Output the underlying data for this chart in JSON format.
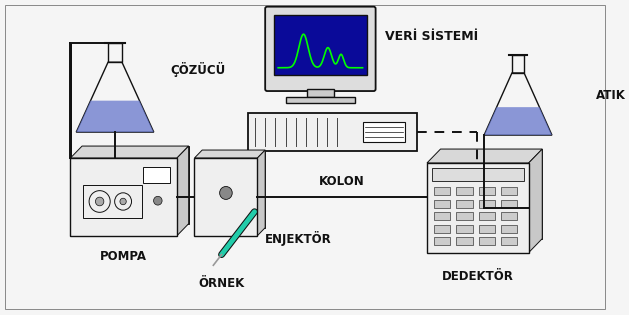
{
  "bg_color": "#f5f5f5",
  "labels": {
    "cozucu": "ÇÖZÜCÜ",
    "pompa": "POMPA",
    "enjekter": "ENJEKTÖR",
    "ornek": "ÖRNEK",
    "kolon": "KOLON",
    "dedekter": "DEDEKTÖR",
    "atik": "ATIK",
    "veri": "VERİ SİSTEMİ"
  },
  "font_size": 8.5,
  "line_color": "#111111",
  "monitor_screen_color": "#0a0a99",
  "peak_color": "#00ff00",
  "flask_liquid_color": "#6677cc",
  "syringe_color": "#22ccaa",
  "lw": 1.0
}
